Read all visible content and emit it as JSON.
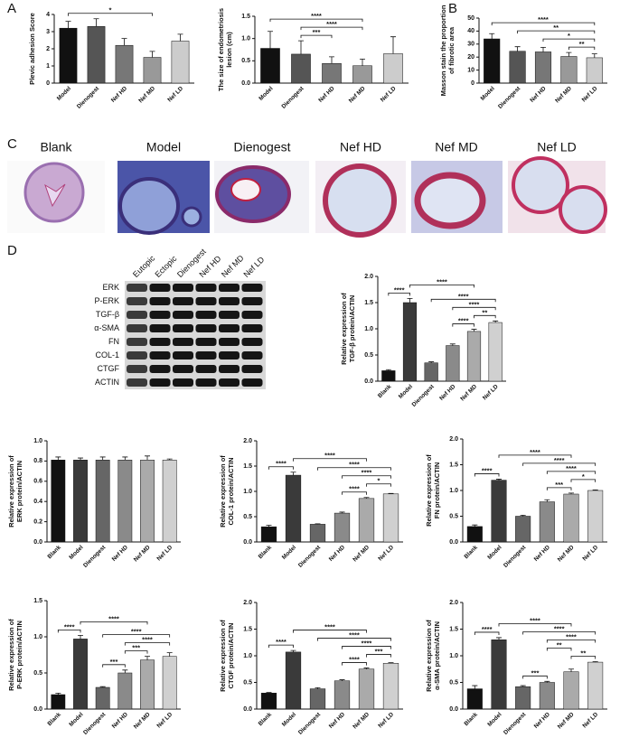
{
  "panel_labels": [
    "A",
    "B",
    "C",
    "D"
  ],
  "histology": {
    "labels": [
      "Blank",
      "Model",
      "Dienogest",
      "Nef HD",
      "Nef MD",
      "Nef LD"
    ]
  },
  "western_blot": {
    "lanes": [
      "Eutopic",
      "Ectopic",
      "Dienogest",
      "Nef HD",
      "Nef MD",
      "Nef LD"
    ],
    "proteins": [
      "ERK",
      "P-ERK",
      "TGF-β",
      "α-SMA",
      "FN",
      "COL-1",
      "CTGF",
      "ACTIN"
    ]
  },
  "chart_data": [
    {
      "type": "bar",
      "ylabel": [
        "Plevic adhesion Score"
      ],
      "categories": [
        "Model",
        "Dienogest",
        "Nef HD",
        "Nef MD",
        "Nef LD"
      ],
      "values": [
        3.2,
        3.3,
        2.2,
        1.5,
        2.45
      ],
      "errors": [
        0.4,
        0.45,
        0.4,
        0.35,
        0.4
      ],
      "colors": [
        "#111111",
        "#555555",
        "#777777",
        "#999999",
        "#cccccc"
      ],
      "ylim": [
        0,
        4
      ],
      "yticks": [
        0,
        1,
        2,
        3,
        4
      ],
      "comparisons": [
        {
          "label": "*",
          "pair": [
            0,
            3
          ]
        }
      ]
    },
    {
      "type": "bar",
      "ylabel": [
        "The size of endometriosis",
        "lesion (cm)"
      ],
      "categories": [
        "Model",
        "Dienogest",
        "Nef HD",
        "Nef MD",
        "Nef LD"
      ],
      "values": [
        0.78,
        0.65,
        0.44,
        0.39,
        0.66
      ],
      "errors": [
        0.38,
        0.3,
        0.15,
        0.15,
        0.38
      ],
      "colors": [
        "#111111",
        "#555555",
        "#777777",
        "#999999",
        "#cccccc"
      ],
      "ylim": [
        0,
        1.5
      ],
      "yticks": [
        {
          "value": 0,
          "label": "0.0"
        },
        {
          "value": 0.5,
          "label": "0.5"
        },
        {
          "value": 1,
          "label": "1.0"
        },
        {
          "value": 1.5,
          "label": "1.5"
        }
      ],
      "comparisons": [
        {
          "label": "***",
          "pair": [
            1,
            2
          ]
        },
        {
          "label": "****",
          "pair": [
            1,
            3
          ]
        },
        {
          "label": "****",
          "pair": [
            0,
            3
          ]
        }
      ]
    },
    {
      "type": "bar",
      "ylabel": [
        "Masson stain the proportion",
        "of fibrotic area"
      ],
      "categories": [
        "Model",
        "Dienogest",
        "Nef HD",
        "Nef MD",
        "Nef LD"
      ],
      "values": [
        34,
        24.5,
        24,
        20.5,
        19.5
      ],
      "errors": [
        4,
        3.5,
        3.5,
        3,
        3
      ],
      "colors": [
        "#111111",
        "#555555",
        "#777777",
        "#999999",
        "#cccccc"
      ],
      "ylim": [
        0,
        50
      ],
      "yticks": [
        0,
        10,
        20,
        30,
        40,
        50
      ],
      "comparisons": [
        {
          "label": "**",
          "pair": [
            3,
            4
          ]
        },
        {
          "label": "*",
          "pair": [
            2,
            4
          ]
        },
        {
          "label": "**",
          "pair": [
            1,
            4
          ]
        },
        {
          "label": "****",
          "pair": [
            0,
            4
          ]
        }
      ]
    },
    {
      "type": "bar",
      "ylabel": [
        "Relative expression of",
        "TGF-β protein/ACTIN"
      ],
      "categories": [
        "Blank",
        "Model",
        "Dienogest",
        "Nef HD",
        "Nef MD",
        "Nef LD"
      ],
      "values": [
        0.2,
        1.5,
        0.35,
        0.68,
        0.95,
        1.12
      ],
      "errors": [
        0.02,
        0.08,
        0.02,
        0.03,
        0.04,
        0.03
      ],
      "colors": [
        "#111111",
        "#3a3a3a",
        "#666666",
        "#8a8a8a",
        "#aaaaaa",
        "#d0d0d0"
      ],
      "ylim": [
        0,
        2
      ],
      "yticks": [
        {
          "value": 0,
          "label": "0.0"
        },
        {
          "value": 0.5,
          "label": "0.5"
        },
        {
          "value": 1,
          "label": "1.0"
        },
        {
          "value": 1.5,
          "label": "1.5"
        },
        {
          "value": 2,
          "label": "2.0"
        }
      ],
      "comparisons": [
        {
          "label": "****",
          "pair": [
            0,
            1
          ]
        },
        {
          "label": "****",
          "pair": [
            3,
            4
          ]
        },
        {
          "label": "**",
          "pair": [
            4,
            5
          ]
        },
        {
          "label": "****",
          "pair": [
            3,
            5
          ]
        },
        {
          "label": "****",
          "pair": [
            2,
            5
          ]
        },
        {
          "label": "****",
          "pair": [
            1,
            4
          ]
        }
      ]
    },
    {
      "type": "bar",
      "ylabel": [
        "Relative expression of",
        "ERK protein/ACTIN"
      ],
      "categories": [
        "Blank",
        "Model",
        "Dienogest",
        "Nef HD",
        "Nef MD",
        "Nef LD"
      ],
      "values": [
        0.81,
        0.81,
        0.81,
        0.81,
        0.81,
        0.81
      ],
      "errors": [
        0.03,
        0.02,
        0.03,
        0.03,
        0.04,
        0.01
      ],
      "colors": [
        "#111111",
        "#3a3a3a",
        "#666666",
        "#8a8a8a",
        "#aaaaaa",
        "#d0d0d0"
      ],
      "ylim": [
        0,
        1
      ],
      "yticks": [
        {
          "value": 0,
          "label": "0.0"
        },
        {
          "value": 0.2,
          "label": "0.2"
        },
        {
          "value": 0.4,
          "label": "0.4"
        },
        {
          "value": 0.6,
          "label": "0.6"
        },
        {
          "value": 0.8,
          "label": "0.8"
        },
        {
          "value": 1,
          "label": "1.0"
        }
      ],
      "comparisons": []
    },
    {
      "type": "bar",
      "ylabel": [
        "Relative expression of",
        "COL-1 protein/ACTIN"
      ],
      "categories": [
        "Blank",
        "Model",
        "Dienogest",
        "Nef HD",
        "Nef MD",
        "Nef LD"
      ],
      "values": [
        0.3,
        1.32,
        0.35,
        0.57,
        0.86,
        0.95
      ],
      "errors": [
        0.03,
        0.06,
        0.01,
        0.02,
        0.02,
        0.01
      ],
      "colors": [
        "#111111",
        "#3a3a3a",
        "#666666",
        "#8a8a8a",
        "#aaaaaa",
        "#d0d0d0"
      ],
      "ylim": [
        0,
        2
      ],
      "yticks": [
        {
          "value": 0,
          "label": "0.0"
        },
        {
          "value": 0.5,
          "label": "0.5"
        },
        {
          "value": 1,
          "label": "1.0"
        },
        {
          "value": 1.5,
          "label": "1.5"
        },
        {
          "value": 2,
          "label": "2.0"
        }
      ],
      "comparisons": [
        {
          "label": "****",
          "pair": [
            0,
            1
          ]
        },
        {
          "label": "****",
          "pair": [
            3,
            4
          ]
        },
        {
          "label": "*",
          "pair": [
            4,
            5
          ]
        },
        {
          "label": "****",
          "pair": [
            3,
            5
          ]
        },
        {
          "label": "****",
          "pair": [
            2,
            5
          ]
        },
        {
          "label": "****",
          "pair": [
            1,
            4
          ]
        }
      ]
    },
    {
      "type": "bar",
      "ylabel": [
        "Relative expression of",
        "FN protein/ACTIN"
      ],
      "categories": [
        "Blank",
        "Model",
        "Dienogest",
        "Nef HD",
        "Nef MD",
        "Nef LD"
      ],
      "values": [
        0.3,
        1.2,
        0.5,
        0.78,
        0.93,
        1.0
      ],
      "errors": [
        0.03,
        0.02,
        0.02,
        0.04,
        0.02,
        0.01
      ],
      "colors": [
        "#111111",
        "#3a3a3a",
        "#666666",
        "#8a8a8a",
        "#aaaaaa",
        "#d0d0d0"
      ],
      "ylim": [
        0,
        2
      ],
      "yticks": [
        {
          "value": 0,
          "label": "0.0"
        },
        {
          "value": 0.5,
          "label": "0.5"
        },
        {
          "value": 1,
          "label": "1.0"
        },
        {
          "value": 1.5,
          "label": "1.5"
        },
        {
          "value": 2,
          "label": "2.0"
        }
      ],
      "comparisons": [
        {
          "label": "****",
          "pair": [
            0,
            1
          ]
        },
        {
          "label": "***",
          "pair": [
            3,
            4
          ]
        },
        {
          "label": "*",
          "pair": [
            4,
            5
          ]
        },
        {
          "label": "****",
          "pair": [
            3,
            5
          ]
        },
        {
          "label": "****",
          "pair": [
            2,
            5
          ]
        },
        {
          "label": "****",
          "pair": [
            1,
            4
          ]
        }
      ]
    },
    {
      "type": "bar",
      "ylabel": [
        "Relative expression of",
        "P-ERK protein/ACTIN"
      ],
      "categories": [
        "Blank",
        "Model",
        "Dienogest",
        "Nef HD",
        "Nef MD",
        "Nef LD"
      ],
      "values": [
        0.2,
        0.97,
        0.3,
        0.5,
        0.68,
        0.73
      ],
      "errors": [
        0.02,
        0.05,
        0.01,
        0.04,
        0.05,
        0.05
      ],
      "colors": [
        "#111111",
        "#3a3a3a",
        "#666666",
        "#8a8a8a",
        "#aaaaaa",
        "#d0d0d0"
      ],
      "ylim": [
        0,
        1.5
      ],
      "yticks": [
        {
          "value": 0,
          "label": "0.0"
        },
        {
          "value": 0.5,
          "label": "0.5"
        },
        {
          "value": 1,
          "label": "1.0"
        },
        {
          "value": 1.5,
          "label": "1.5"
        }
      ],
      "comparisons": [
        {
          "label": "****",
          "pair": [
            0,
            1
          ]
        },
        {
          "label": "***",
          "pair": [
            2,
            3
          ]
        },
        {
          "label": "***",
          "pair": [
            3,
            4
          ]
        },
        {
          "label": "****",
          "pair": [
            3,
            5
          ]
        },
        {
          "label": "****",
          "pair": [
            2,
            5
          ]
        },
        {
          "label": "****",
          "pair": [
            1,
            4
          ]
        }
      ]
    },
    {
      "type": "bar",
      "ylabel": [
        "Relative expression of",
        "CTGF protein/ACTIN"
      ],
      "categories": [
        "Blank",
        "Model",
        "Dienogest",
        "Nef HD",
        "Nef MD",
        "Nef LD"
      ],
      "values": [
        0.3,
        1.07,
        0.38,
        0.53,
        0.75,
        0.86
      ],
      "errors": [
        0.01,
        0.03,
        0.02,
        0.02,
        0.02,
        0.01
      ],
      "colors": [
        "#111111",
        "#3a3a3a",
        "#666666",
        "#8a8a8a",
        "#aaaaaa",
        "#d0d0d0"
      ],
      "ylim": [
        0,
        2
      ],
      "yticks": [
        {
          "value": 0,
          "label": "0.0"
        },
        {
          "value": 0.5,
          "label": "0.5"
        },
        {
          "value": 1,
          "label": "1.0"
        },
        {
          "value": 1.5,
          "label": "1.5"
        },
        {
          "value": 2,
          "label": "2.0"
        }
      ],
      "comparisons": [
        {
          "label": "****",
          "pair": [
            0,
            1
          ]
        },
        {
          "label": "****",
          "pair": [
            3,
            4
          ]
        },
        {
          "label": "***",
          "pair": [
            4,
            5
          ]
        },
        {
          "label": "****",
          "pair": [
            3,
            5
          ]
        },
        {
          "label": "****",
          "pair": [
            2,
            5
          ]
        },
        {
          "label": "****",
          "pair": [
            1,
            4
          ]
        }
      ]
    },
    {
      "type": "bar",
      "ylabel": [
        "Relative expression of",
        "α-SMA protein/ACTIN"
      ],
      "categories": [
        "Blank",
        "Model",
        "Dienogest",
        "Nef HD",
        "Nef MD",
        "Nef LD"
      ],
      "values": [
        0.38,
        1.3,
        0.42,
        0.5,
        0.7,
        0.88
      ],
      "errors": [
        0.06,
        0.04,
        0.02,
        0.02,
        0.05,
        0.01
      ],
      "colors": [
        "#111111",
        "#3a3a3a",
        "#666666",
        "#8a8a8a",
        "#aaaaaa",
        "#d0d0d0"
      ],
      "ylim": [
        0,
        2
      ],
      "yticks": [
        {
          "value": 0,
          "label": "0.0"
        },
        {
          "value": 0.5,
          "label": "0.5"
        },
        {
          "value": 1,
          "label": "1.0"
        },
        {
          "value": 1.5,
          "label": "1.5"
        },
        {
          "value": 2,
          "label": "2.0"
        }
      ],
      "comparisons": [
        {
          "label": "****",
          "pair": [
            0,
            1
          ]
        },
        {
          "label": "***",
          "pair": [
            2,
            3
          ]
        },
        {
          "label": "**",
          "pair": [
            4,
            5
          ]
        },
        {
          "label": "**",
          "pair": [
            3,
            4
          ]
        },
        {
          "label": "****",
          "pair": [
            3,
            5
          ]
        },
        {
          "label": "****",
          "pair": [
            2,
            5
          ]
        },
        {
          "label": "****",
          "pair": [
            1,
            4
          ]
        }
      ]
    }
  ]
}
